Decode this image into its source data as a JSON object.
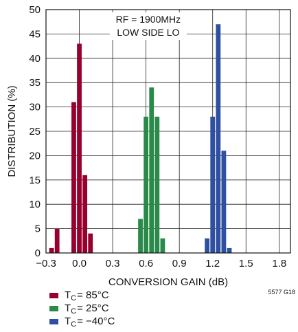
{
  "chart_data": {
    "type": "bar",
    "xlabel": "CONVERSION GAIN (dB)",
    "ylabel": "DISTRIBUTION (%)",
    "xlim": [
      -0.3,
      1.9
    ],
    "ylim": [
      0,
      50
    ],
    "xticks": [
      "−0.3",
      "0.0",
      "0.3",
      "0.6",
      "0.9",
      "1.2",
      "1.5",
      "1.8"
    ],
    "yticks": [
      "0",
      "5",
      "10",
      "15",
      "20",
      "25",
      "30",
      "35",
      "40",
      "45",
      "50"
    ],
    "annotation": [
      "RF = 1900MHz",
      "LOW SIDE LO"
    ],
    "figure_id": "5577 G18",
    "bin_width": 0.05,
    "series": [
      {
        "name": "85°C",
        "color": "#98002e",
        "x": [
          -0.25,
          -0.2,
          -0.05,
          0.0,
          0.05,
          0.1,
          0.15
        ],
        "values": [
          1,
          5,
          31,
          43,
          16,
          4,
          0
        ]
      },
      {
        "name": "25°C",
        "color": "#2a8a4a",
        "x": [
          0.55,
          0.6,
          0.65,
          0.7,
          0.75,
          0.8
        ],
        "values": [
          7,
          28,
          34,
          28,
          3,
          0
        ]
      },
      {
        "name": "−40°C",
        "color": "#2f50a0",
        "x": [
          1.15,
          1.2,
          1.25,
          1.3,
          1.35,
          1.4
        ],
        "values": [
          3,
          28,
          47,
          21,
          1,
          0
        ]
      }
    ]
  },
  "legend": {
    "items": [
      {
        "prefix": "T",
        "sub": "C",
        "text": " = 85°C",
        "color": "#98002e"
      },
      {
        "prefix": "T",
        "sub": "C",
        "text": " = 25°C",
        "color": "#2a8a4a"
      },
      {
        "prefix": "T",
        "sub": "C",
        "text": " = −40°C",
        "color": "#2f50a0"
      }
    ]
  }
}
